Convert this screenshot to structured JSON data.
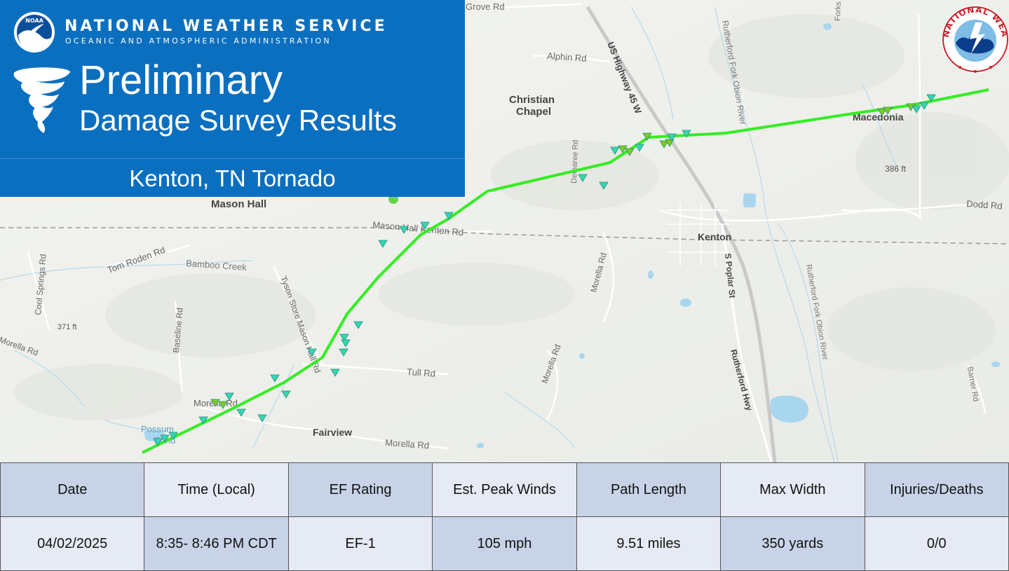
{
  "header": {
    "agency": "NATIONAL WEATHER SERVICE",
    "agency_sub": "OCEANIC AND ATMOSPHERIC ADMINISTRATION",
    "noaa_logo_text": "NOAA",
    "title_line1": "Preliminary",
    "title_line2": "Damage Survey Results",
    "event": "Kenton, TN Tornado",
    "seal_text": "NATIONAL WEATHER SERVICE"
  },
  "map": {
    "labels": [
      {
        "text": "Grove Rd"
      },
      {
        "text": "Alphin Rd"
      },
      {
        "text": "US Highway 45 W"
      },
      {
        "text": "Rutherford Fork Obion River"
      },
      {
        "text": "Forks River Rd"
      },
      {
        "text": "Christian"
      },
      {
        "text": "Chapel"
      },
      {
        "text": "Macedonia"
      },
      {
        "text": "386 ft"
      },
      {
        "text": "Dodd Rd"
      },
      {
        "text": "Demaree Rd"
      },
      {
        "text": "Mason Hall"
      },
      {
        "text": "Mason Hall Kenton Rd"
      },
      {
        "text": "Kenton"
      },
      {
        "text": "S Poplar St"
      },
      {
        "text": "Cool Springs Rd"
      },
      {
        "text": "Tom Roden Rd"
      },
      {
        "text": "Bamboo Creek"
      },
      {
        "text": "Tyson Store Mason Hall Rd"
      },
      {
        "text": "Morella Rd"
      },
      {
        "text": "Rutherford Fork Obion River"
      },
      {
        "text": "Baseline Rd"
      },
      {
        "text": "371 ft"
      },
      {
        "text": "Morella Rd"
      },
      {
        "text": "Tull Rd"
      },
      {
        "text": "Morella Rd"
      },
      {
        "text": "Rutherford Hwy"
      },
      {
        "text": "Barner Rd"
      },
      {
        "text": "Possum"
      },
      {
        "text": "Pond"
      },
      {
        "text": "Fairview"
      },
      {
        "text": "Morella Rd"
      },
      {
        "text": "Morella Rd"
      }
    ],
    "track_color": "#33ee22",
    "marker_color": "#33d6b4",
    "marker_color_ef1": "#7ccc22"
  },
  "summary": {
    "headers": [
      "Date",
      "Time (Local)",
      "EF Rating",
      "Est. Peak Winds",
      "Path Length",
      "Max Width",
      "Injuries/Deaths"
    ],
    "values": [
      "04/02/2025",
      "8:35- 8:46 PM CDT",
      "EF-1",
      "105 mph",
      "9.51 miles",
      "350 yards",
      "0/0"
    ]
  }
}
